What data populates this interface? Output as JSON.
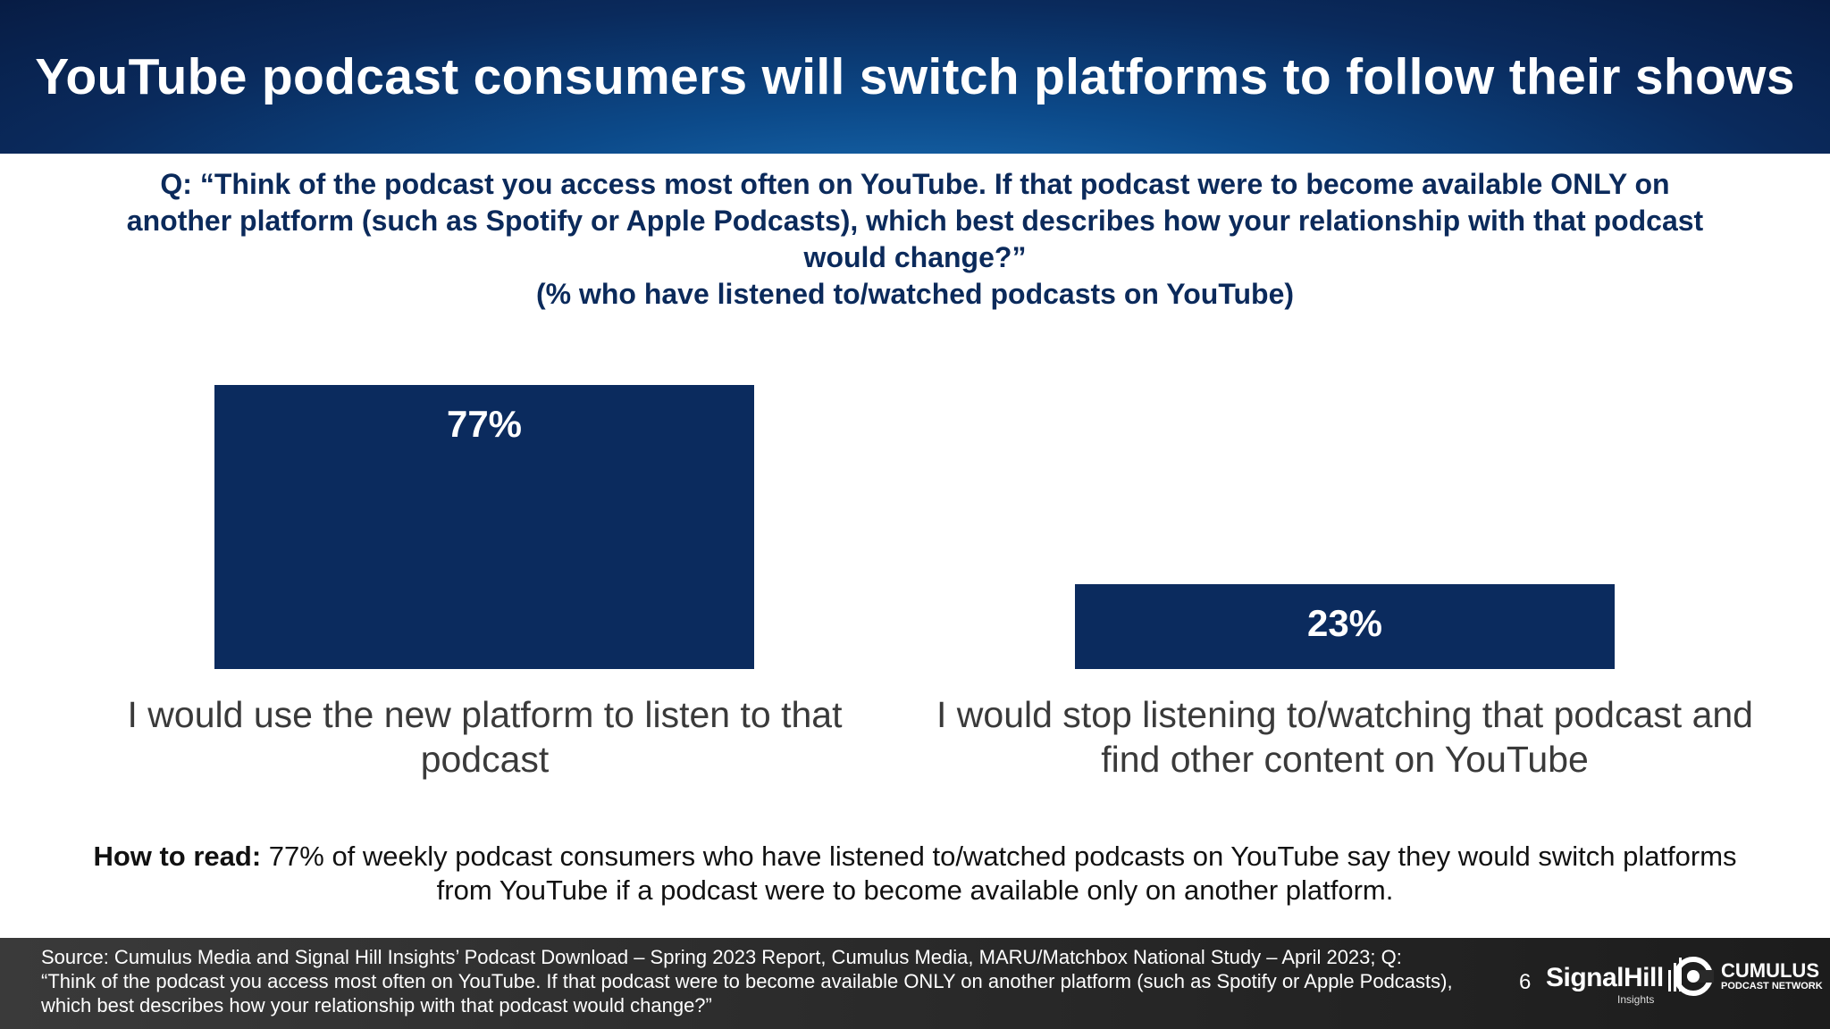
{
  "header": {
    "title": "YouTube podcast consumers will switch platforms to follow their shows"
  },
  "question": {
    "line1": "Q: “Think of the podcast you access most often on YouTube. If that podcast were to become available ONLY on",
    "line2": "another platform (such as Spotify or Apple Podcasts), which best describes how your relationship with that podcast",
    "line3": "would change?”",
    "base": "(% who have listened to/watched podcasts on YouTube)"
  },
  "chart_data": {
    "type": "bar",
    "categories": [
      "I would use the new platform to listen to that podcast",
      "I would stop listening to/watching that podcast and find other content on YouTube"
    ],
    "values": [
      77,
      23
    ],
    "data_labels": [
      "77%",
      "23%"
    ],
    "bar_color": "#0b2b5e",
    "label_color": "#ffffff",
    "ylim": [
      0,
      77
    ],
    "grid": false,
    "legend": "none"
  },
  "how_to_read": {
    "label": "How to read:",
    "text": " 77% of weekly podcast consumers who have listened to/watched podcasts on YouTube say they would switch platforms from YouTube if a podcast were to become available only on another platform."
  },
  "footer": {
    "source": "Source: Cumulus Media and Signal Hill Insights’ Podcast Download – Spring 2023 Report, Cumulus Media, MARU/Matchbox National Study – April 2023; Q: “Think of the podcast you access most often on YouTube. If that podcast were to become available ONLY on another platform (such as Spotify or Apple Podcasts), which best describes how your relationship with that podcast would change?”",
    "page_number": "6",
    "signal_hill_logo": "SignalHill",
    "signal_hill_sub": "Insights",
    "cumulus_logo": "CUMULUS",
    "cumulus_sub": "PODCAST NETWORK"
  }
}
